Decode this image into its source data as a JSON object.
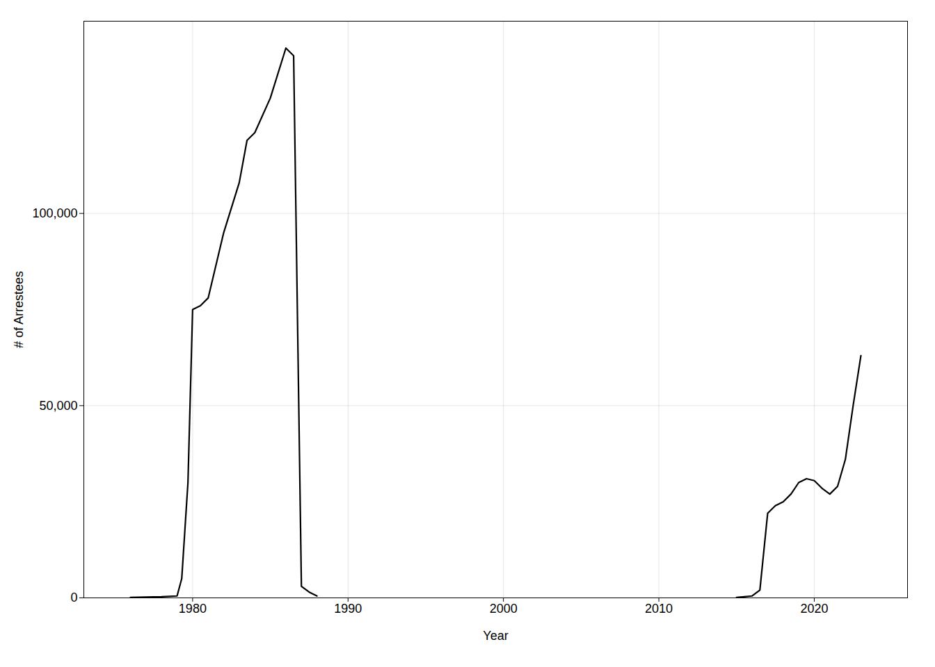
{
  "chart_data": {
    "type": "line",
    "xlabel": "Year",
    "ylabel": "# of Arrestees",
    "series": [
      {
        "color": "#000000",
        "x": [
          1976,
          1977,
          1978,
          1979,
          1979.3,
          1979.7,
          1980,
          1980.5,
          1981,
          1982,
          1983,
          1983.5,
          1984,
          1985,
          1986,
          1986.5,
          1987,
          1987.5,
          1988
        ],
        "values": [
          100,
          200,
          300,
          500,
          5000,
          30000,
          75000,
          76000,
          78000,
          95000,
          108000,
          119000,
          121000,
          130000,
          143000,
          141000,
          3000,
          1500,
          500
        ]
      },
      {
        "color": "#000000",
        "x": [
          2015,
          2016,
          2016.5,
          2017,
          2017.5,
          2018,
          2018.5,
          2019,
          2019.5,
          2020,
          2020.5,
          2021,
          2021.5,
          2022,
          2022.5,
          2023
        ],
        "values": [
          100,
          500,
          2000,
          22000,
          24000,
          25000,
          27000,
          30000,
          31000,
          30500,
          28500,
          27000,
          29000,
          36000,
          50000,
          63000
        ]
      }
    ],
    "xlim": [
      1973,
      2026
    ],
    "xticks": [
      1980,
      1990,
      2000,
      2010,
      2020
    ],
    "ylim": [
      0,
      150000
    ],
    "yticks": [
      0,
      {
        "value": 50000,
        "label": "50,000"
      },
      {
        "value": 100000,
        "label": "100,000"
      }
    ],
    "grid": true
  }
}
